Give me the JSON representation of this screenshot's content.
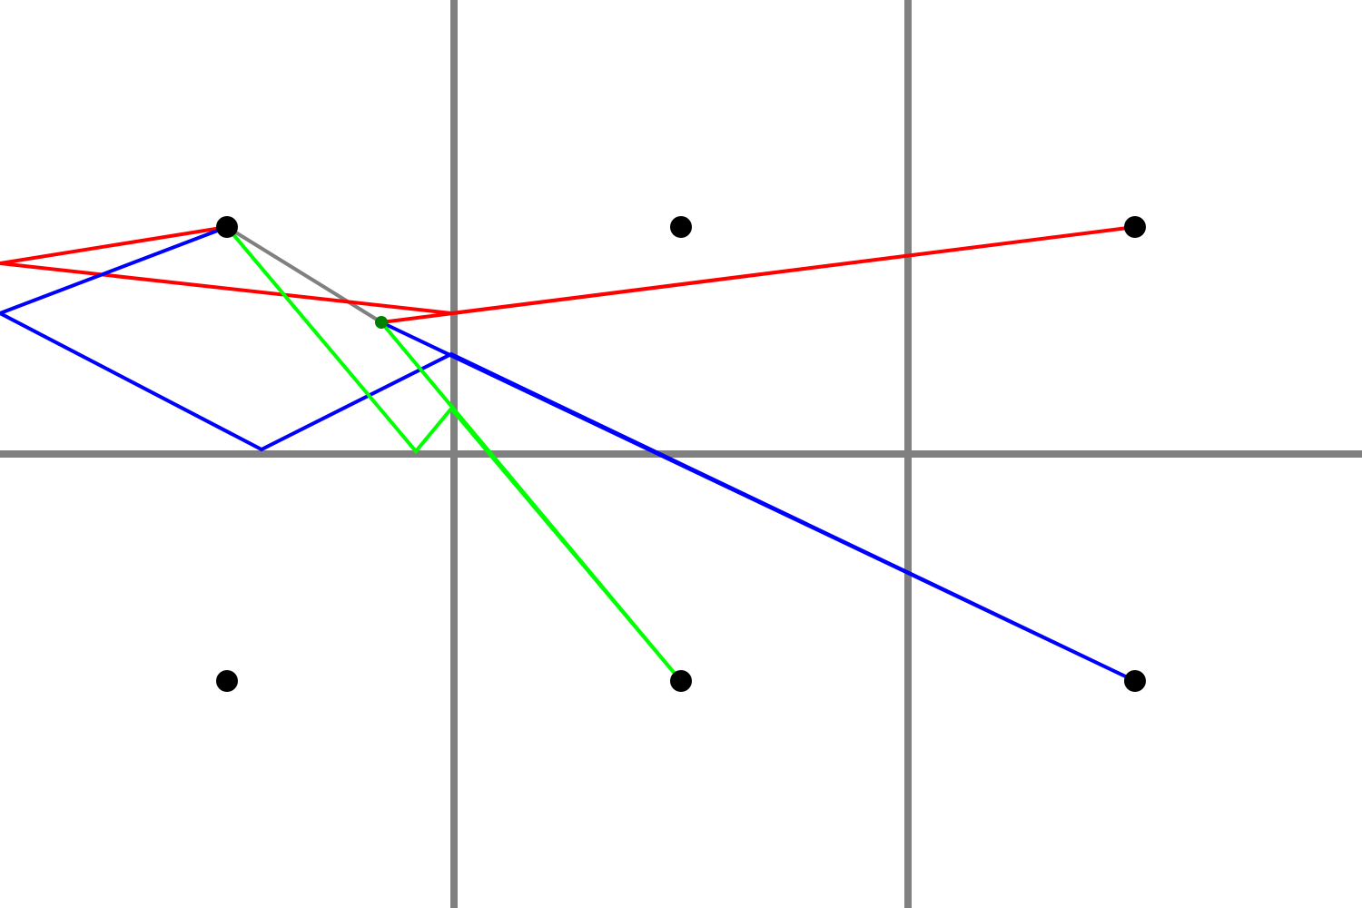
{
  "diagram": {
    "grid": {
      "columns": 3,
      "rows": 2,
      "line_color": "#808080"
    },
    "cell_center_marker_color": "#000000",
    "source_cell": {
      "col": 0,
      "row": 0
    },
    "direct_ray_color": "#808080",
    "reflection_point_color": "#008000",
    "ray_paths": [
      {
        "name": "red-path",
        "color": "#ff0000",
        "target_cell": {
          "col": 2,
          "row": 0
        }
      },
      {
        "name": "blue-path",
        "color": "#0000ff",
        "target_cell": {
          "col": 2,
          "row": 1
        }
      },
      {
        "name": "green-path",
        "color": "#00ff00",
        "target_cell": {
          "col": 1,
          "row": 1
        }
      }
    ]
  }
}
